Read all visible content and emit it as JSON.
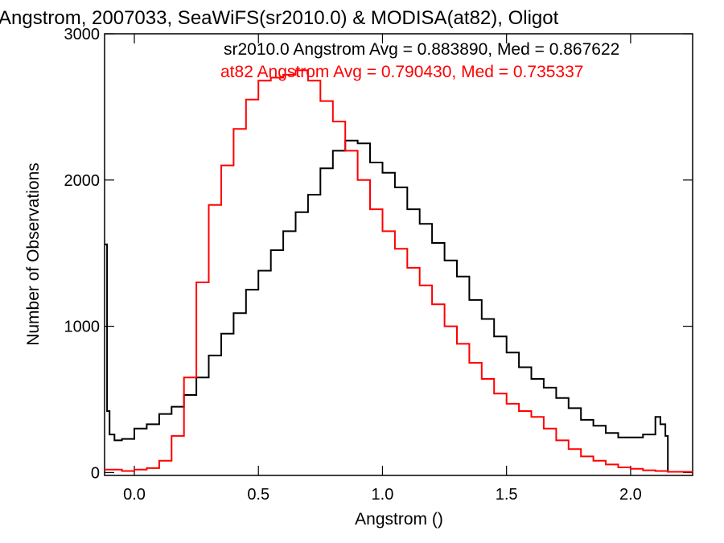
{
  "chart_data": {
    "type": "line",
    "title": "Angstrom, 2007033, SeaWiFS(sr2010.0) & MODISA(at82), Oligot",
    "xlabel": "Angstrom ()",
    "ylabel": "Number of Observations",
    "xlim": [
      -0.12,
      2.25
    ],
    "ylim": [
      -20,
      3000
    ],
    "x_ticks": [
      0.0,
      0.5,
      1.0,
      1.5,
      2.0
    ],
    "x_tick_labels": [
      "0.0",
      "0.5",
      "1.0",
      "1.5",
      "2.0"
    ],
    "y_ticks": [
      0,
      1000,
      2000,
      3000
    ],
    "y_tick_labels": [
      "0",
      "1000",
      "2000",
      "3000"
    ],
    "grid": false,
    "legend_position": "top-right",
    "series": [
      {
        "name": "sr2010.0",
        "color": "#000000",
        "legend": "sr2010.0 Angstrom Avg = 0.883890, Med = 0.867622",
        "x": [
          -0.12,
          -0.11,
          -0.1,
          -0.08,
          -0.05,
          0.0,
          0.05,
          0.1,
          0.15,
          0.2,
          0.25,
          0.3,
          0.35,
          0.4,
          0.45,
          0.5,
          0.55,
          0.6,
          0.65,
          0.7,
          0.75,
          0.8,
          0.85,
          0.9,
          0.95,
          1.0,
          1.05,
          1.1,
          1.15,
          1.2,
          1.25,
          1.3,
          1.35,
          1.4,
          1.45,
          1.5,
          1.55,
          1.6,
          1.65,
          1.7,
          1.75,
          1.8,
          1.85,
          1.9,
          1.95,
          2.0,
          2.05,
          2.1,
          2.12,
          2.14,
          2.15
        ],
        "y": [
          1560,
          420,
          260,
          220,
          230,
          300,
          330,
          400,
          450,
          530,
          650,
          800,
          950,
          1090,
          1250,
          1380,
          1520,
          1650,
          1780,
          1900,
          2080,
          2200,
          2270,
          2250,
          2120,
          2050,
          1950,
          1800,
          1700,
          1570,
          1450,
          1340,
          1180,
          1050,
          930,
          820,
          720,
          640,
          580,
          510,
          440,
          360,
          320,
          270,
          240,
          240,
          260,
          380,
          330,
          250,
          0
        ]
      },
      {
        "name": "at82",
        "color": "#ff0000",
        "legend": "at82 Angstrom Avg = 0.790430, Med = 0.735337",
        "x": [
          -0.12,
          -0.05,
          0.0,
          0.05,
          0.1,
          0.15,
          0.2,
          0.25,
          0.3,
          0.35,
          0.4,
          0.45,
          0.5,
          0.55,
          0.6,
          0.65,
          0.7,
          0.75,
          0.8,
          0.85,
          0.9,
          0.95,
          1.0,
          1.05,
          1.1,
          1.15,
          1.2,
          1.25,
          1.3,
          1.35,
          1.4,
          1.45,
          1.5,
          1.55,
          1.6,
          1.65,
          1.7,
          1.75,
          1.8,
          1.85,
          1.9,
          1.95,
          2.0,
          2.05,
          2.1,
          2.15,
          2.25
        ],
        "y": [
          20,
          10,
          20,
          30,
          80,
          250,
          650,
          1300,
          1830,
          2100,
          2350,
          2550,
          2680,
          2700,
          2720,
          2750,
          2680,
          2540,
          2400,
          2200,
          2000,
          1800,
          1650,
          1530,
          1400,
          1280,
          1150,
          1000,
          880,
          750,
          640,
          540,
          470,
          420,
          380,
          300,
          220,
          160,
          110,
          80,
          55,
          35,
          25,
          15,
          10,
          5,
          0
        ]
      }
    ]
  }
}
